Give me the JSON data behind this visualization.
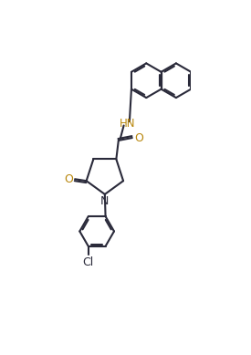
{
  "bg_color": "#ffffff",
  "bond_color": "#2a2a3a",
  "O_color": "#b8860b",
  "HN_color": "#b8860b",
  "N_color": "#2a2a3a",
  "lw": 1.5,
  "fig_w": 2.75,
  "fig_h": 3.89,
  "xlim": [
    -0.3,
    1.1
  ],
  "ylim": [
    -1.5,
    1.6
  ]
}
